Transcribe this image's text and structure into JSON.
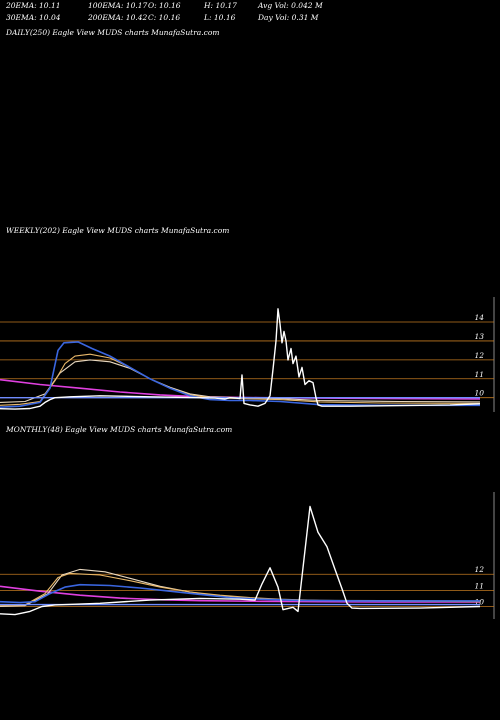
{
  "header": {
    "row1": [
      "20EMA: 10.11",
      "100EMA: 10.17",
      "O: 10.16",
      "H: 10.17",
      "Avg Vol: 0.042  M"
    ],
    "row2": [
      "30EMA: 10.04",
      "200EMA: 10.42",
      "C: 10.16",
      "L: 10.16",
      "Day Vol: 0.31  M"
    ]
  },
  "colors": {
    "background": "#000000",
    "price": "#ffffff",
    "ema20": "#3a66e0",
    "ema30": "#e8b86a",
    "ema100": "#e8d8c0",
    "ema200": "#e040e0",
    "ref_line": "#6f8cff",
    "grid": "#c07820",
    "right_axis": "#888888"
  },
  "chart_data": [
    {
      "type": "line",
      "title": "DAILY(250) Eagle  View  MUDS charts MunafaSutra.com",
      "series": []
    },
    {
      "type": "line",
      "title": "WEEKLY(202) Eagle  View  MUDS charts MunafaSutra.com",
      "y_ticks": [
        14,
        13,
        12,
        11,
        10
      ],
      "ylim": [
        9.35,
        14.9
      ],
      "grid": true,
      "series": [
        {
          "role": "price",
          "points": [
            [
              0,
              9.42
            ],
            [
              15,
              9.4
            ],
            [
              30,
              9.43
            ],
            [
              40,
              9.55
            ],
            [
              45,
              9.75
            ],
            [
              50,
              9.9
            ],
            [
              55,
              10.0
            ],
            [
              70,
              10.05
            ],
            [
              100,
              10.1
            ],
            [
              150,
              10.05
            ],
            [
              200,
              10.0
            ],
            [
              215,
              9.98
            ],
            [
              220,
              9.95
            ],
            [
              225,
              9.93
            ],
            [
              230,
              10.0
            ],
            [
              236,
              9.98
            ],
            [
              240,
              9.95
            ],
            [
              242,
              11.2
            ],
            [
              244,
              9.7
            ],
            [
              250,
              9.62
            ],
            [
              258,
              9.55
            ],
            [
              265,
              9.7
            ],
            [
              270,
              10.1
            ],
            [
              273,
              11.5
            ],
            [
              276,
              13.0
            ],
            [
              278,
              14.7
            ],
            [
              280,
              13.9
            ],
            [
              282,
              12.9
            ],
            [
              284,
              13.5
            ],
            [
              286,
              13.0
            ],
            [
              288,
              12.0
            ],
            [
              291,
              12.6
            ],
            [
              293,
              11.8
            ],
            [
              296,
              12.2
            ],
            [
              299,
              11.1
            ],
            [
              302,
              11.6
            ],
            [
              305,
              10.7
            ],
            [
              309,
              10.9
            ],
            [
              313,
              10.8
            ],
            [
              316,
              10.0
            ],
            [
              318,
              9.62
            ],
            [
              322,
              9.55
            ],
            [
              350,
              9.55
            ],
            [
              400,
              9.58
            ],
            [
              450,
              9.62
            ],
            [
              480,
              9.68
            ]
          ]
        },
        {
          "role": "ema20",
          "points": [
            [
              0,
              9.5
            ],
            [
              20,
              9.55
            ],
            [
              40,
              9.75
            ],
            [
              50,
              10.5
            ],
            [
              58,
              12.5
            ],
            [
              64,
              12.9
            ],
            [
              78,
              12.95
            ],
            [
              92,
              12.6
            ],
            [
              110,
              12.2
            ],
            [
              130,
              11.6
            ],
            [
              150,
              11.0
            ],
            [
              170,
              10.5
            ],
            [
              190,
              10.1
            ],
            [
              210,
              9.9
            ],
            [
              230,
              9.85
            ],
            [
              250,
              9.85
            ],
            [
              280,
              9.8
            ],
            [
              320,
              9.63
            ],
            [
              380,
              9.6
            ],
            [
              480,
              9.6
            ]
          ]
        },
        {
          "role": "ema30",
          "points": [
            [
              0,
              9.6
            ],
            [
              20,
              9.65
            ],
            [
              40,
              9.8
            ],
            [
              55,
              10.9
            ],
            [
              65,
              11.8
            ],
            [
              75,
              12.2
            ],
            [
              90,
              12.3
            ],
            [
              110,
              12.1
            ],
            [
              130,
              11.6
            ],
            [
              150,
              11.0
            ],
            [
              170,
              10.5
            ],
            [
              190,
              10.15
            ],
            [
              210,
              10.0
            ],
            [
              240,
              9.95
            ],
            [
              280,
              9.9
            ],
            [
              320,
              9.78
            ],
            [
              380,
              9.72
            ],
            [
              480,
              9.7
            ]
          ]
        },
        {
          "role": "ema100",
          "points": [
            [
              0,
              9.75
            ],
            [
              25,
              9.8
            ],
            [
              45,
              10.2
            ],
            [
              60,
              11.3
            ],
            [
              75,
              11.9
            ],
            [
              90,
              12.0
            ],
            [
              110,
              11.9
            ],
            [
              130,
              11.55
            ],
            [
              150,
              11.0
            ],
            [
              170,
              10.55
            ],
            [
              190,
              10.2
            ],
            [
              210,
              10.05
            ],
            [
              240,
              10.0
            ],
            [
              280,
              9.95
            ],
            [
              320,
              9.85
            ],
            [
              400,
              9.8
            ],
            [
              480,
              9.78
            ]
          ]
        },
        {
          "role": "ema200",
          "points": [
            [
              0,
              10.95
            ],
            [
              40,
              10.7
            ],
            [
              80,
              10.5
            ],
            [
              120,
              10.3
            ],
            [
              160,
              10.15
            ],
            [
              200,
              10.05
            ],
            [
              260,
              10.0
            ],
            [
              320,
              9.98
            ],
            [
              400,
              9.95
            ],
            [
              480,
              9.93
            ]
          ]
        },
        {
          "role": "ref_line",
          "points": [
            [
              0,
              10.0
            ],
            [
              480,
              10.0
            ]
          ]
        }
      ]
    },
    {
      "type": "line",
      "title": "MONTHLY(48) Eagle  View  MUDS charts MunafaSutra.com",
      "y_ticks": [
        12,
        11,
        10
      ],
      "ylim": [
        9.35,
        16.6
      ],
      "grid": true,
      "series": [
        {
          "role": "price",
          "points": [
            [
              0,
              9.55
            ],
            [
              15,
              9.5
            ],
            [
              30,
              9.7
            ],
            [
              42,
              10.0
            ],
            [
              55,
              10.1
            ],
            [
              100,
              10.2
            ],
            [
              150,
              10.4
            ],
            [
              200,
              10.5
            ],
            [
              240,
              10.45
            ],
            [
              255,
              10.4
            ],
            [
              262,
              11.4
            ],
            [
              270,
              12.4
            ],
            [
              278,
              11.2
            ],
            [
              283,
              9.8
            ],
            [
              293,
              9.95
            ],
            [
              298,
              9.7
            ],
            [
              310,
              16.2
            ],
            [
              318,
              14.6
            ],
            [
              327,
              13.7
            ],
            [
              335,
              12.3
            ],
            [
              342,
              11.1
            ],
            [
              347,
              10.2
            ],
            [
              352,
              9.9
            ],
            [
              360,
              9.88
            ],
            [
              420,
              9.9
            ],
            [
              480,
              10.0
            ]
          ]
        },
        {
          "role": "ema20",
          "points": [
            [
              0,
              10.3
            ],
            [
              20,
              10.25
            ],
            [
              35,
              10.3
            ],
            [
              50,
              10.8
            ],
            [
              65,
              11.2
            ],
            [
              80,
              11.35
            ],
            [
              110,
              11.3
            ],
            [
              140,
              11.15
            ],
            [
              170,
              10.95
            ],
            [
              200,
              10.75
            ],
            [
              230,
              10.55
            ],
            [
              260,
              10.45
            ],
            [
              300,
              10.38
            ],
            [
              360,
              10.35
            ],
            [
              480,
              10.35
            ]
          ]
        },
        {
          "role": "ema30",
          "points": [
            [
              0,
              10.05
            ],
            [
              25,
              10.1
            ],
            [
              45,
              10.8
            ],
            [
              58,
              11.8
            ],
            [
              70,
              12.05
            ],
            [
              100,
              11.95
            ],
            [
              130,
              11.6
            ],
            [
              160,
              11.2
            ],
            [
              190,
              10.9
            ],
            [
              220,
              10.7
            ],
            [
              250,
              10.55
            ],
            [
              280,
              10.45
            ],
            [
              320,
              10.38
            ],
            [
              480,
              10.3
            ]
          ]
        },
        {
          "role": "ema100",
          "points": [
            [
              0,
              10.0
            ],
            [
              25,
              10.05
            ],
            [
              48,
              10.8
            ],
            [
              62,
              11.95
            ],
            [
              80,
              12.3
            ],
            [
              105,
              12.15
            ],
            [
              130,
              11.75
            ],
            [
              160,
              11.25
            ],
            [
              190,
              10.9
            ],
            [
              220,
              10.65
            ],
            [
              250,
              10.5
            ],
            [
              280,
              10.42
            ],
            [
              320,
              10.38
            ],
            [
              480,
              10.35
            ]
          ]
        },
        {
          "role": "ema200",
          "points": [
            [
              0,
              11.25
            ],
            [
              40,
              10.95
            ],
            [
              80,
              10.7
            ],
            [
              120,
              10.52
            ],
            [
              160,
              10.42
            ],
            [
              200,
              10.36
            ],
            [
              260,
              10.32
            ],
            [
              320,
              10.3
            ],
            [
              400,
              10.28
            ],
            [
              480,
              10.28
            ]
          ]
        },
        {
          "role": "ref_line",
          "points": [
            [
              0,
              10.12
            ],
            [
              480,
              10.12
            ]
          ]
        }
      ]
    }
  ]
}
